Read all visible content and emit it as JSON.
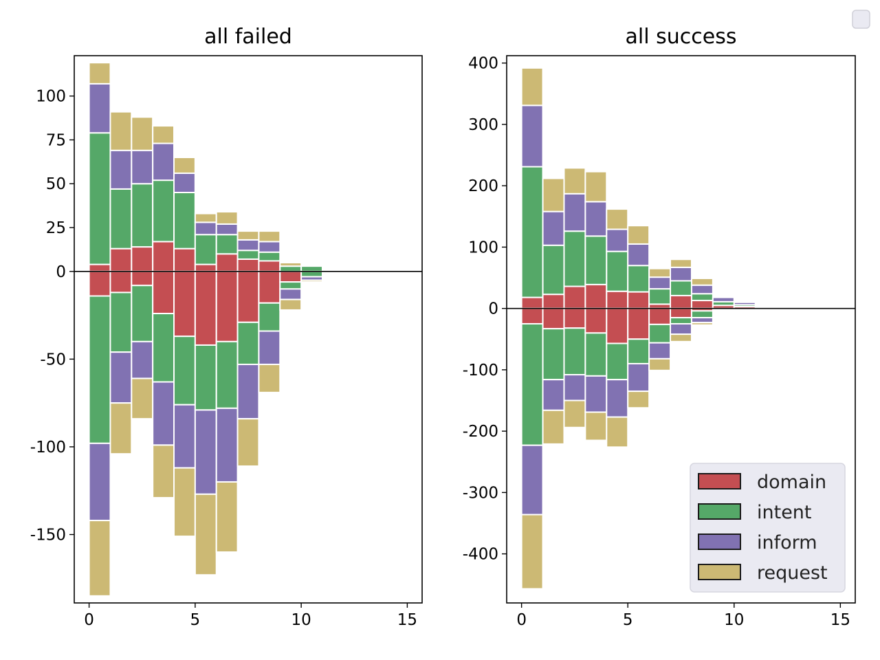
{
  "chart_data": [
    {
      "type": "bar",
      "title": "all failed",
      "stacking": "diverging",
      "bin_width": 1,
      "x": [
        0.5,
        1.5,
        2.5,
        3.5,
        4.5,
        5.5,
        6.5,
        7.5,
        8.5,
        9.5,
        10.5,
        11.5
      ],
      "xlim": [
        -0.7,
        15.7
      ],
      "ylim": [
        -189,
        123
      ],
      "xticks": [
        0,
        5,
        10,
        15
      ],
      "yticks": [
        100,
        75,
        50,
        25,
        0,
        -50,
        -100,
        -150
      ],
      "ytick_labels": [
        "100",
        "75",
        "50",
        "25",
        "0",
        "-50",
        "-100",
        "-150"
      ],
      "series": [
        {
          "name": "domain",
          "positive": [
            4,
            13,
            14,
            17,
            13,
            4,
            10,
            7,
            6,
            0,
            0,
            0
          ],
          "negative": [
            14,
            12,
            8,
            24,
            37,
            42,
            40,
            29,
            18,
            6,
            0,
            0
          ]
        },
        {
          "name": "intent",
          "positive": [
            75,
            34,
            36,
            35,
            32,
            17,
            11,
            5,
            5,
            3,
            3,
            0
          ],
          "negative": [
            84,
            34,
            32,
            39,
            39,
            37,
            38,
            24,
            16,
            4,
            3,
            0
          ]
        },
        {
          "name": "inform",
          "positive": [
            28,
            22,
            19,
            21,
            11,
            7,
            6,
            6,
            6,
            0,
            0,
            0
          ],
          "negative": [
            44,
            29,
            21,
            36,
            36,
            48,
            42,
            31,
            19,
            6,
            2,
            0
          ]
        },
        {
          "name": "request",
          "positive": [
            12,
            22,
            19,
            10,
            9,
            5,
            7,
            5,
            6,
            2,
            0,
            0
          ],
          "negative": [
            43,
            29,
            23,
            30,
            39,
            46,
            40,
            27,
            16,
            6,
            1,
            0
          ]
        }
      ]
    },
    {
      "type": "bar",
      "title": "all success",
      "stacking": "diverging",
      "bin_width": 1,
      "x": [
        0.5,
        1.5,
        2.5,
        3.5,
        4.5,
        5.5,
        6.5,
        7.5,
        8.5,
        9.5,
        10.5,
        11.5
      ],
      "xlim": [
        -0.7,
        15.7
      ],
      "ylim": [
        -480,
        412
      ],
      "xticks": [
        0,
        5,
        10,
        15
      ],
      "yticks": [
        400,
        300,
        200,
        100,
        0,
        -100,
        -200,
        -300,
        -400
      ],
      "ytick_labels": [
        "400",
        "300",
        "200",
        "100",
        "0",
        "-100",
        "-200",
        "-300",
        "-400"
      ],
      "series": [
        {
          "name": "domain",
          "positive": [
            18,
            23,
            36,
            39,
            28,
            27,
            7,
            21,
            13,
            5,
            3,
            0
          ],
          "negative": [
            25,
            33,
            32,
            40,
            57,
            50,
            26,
            15,
            4,
            0,
            0,
            0
          ]
        },
        {
          "name": "intent",
          "positive": [
            213,
            80,
            90,
            79,
            65,
            43,
            25,
            24,
            11,
            6,
            3,
            0
          ],
          "negative": [
            198,
            83,
            76,
            70,
            59,
            40,
            30,
            10,
            11,
            0,
            0,
            0
          ]
        },
        {
          "name": "inform",
          "positive": [
            100,
            55,
            61,
            56,
            36,
            35,
            19,
            22,
            14,
            7,
            4,
            0
          ],
          "negative": [
            113,
            50,
            42,
            59,
            61,
            45,
            26,
            17,
            8,
            0,
            0,
            0
          ]
        },
        {
          "name": "request",
          "positive": [
            61,
            54,
            42,
            49,
            33,
            30,
            14,
            13,
            11,
            0,
            0,
            0
          ],
          "negative": [
            121,
            55,
            44,
            46,
            49,
            27,
            19,
            12,
            4,
            0,
            0,
            0
          ]
        }
      ]
    }
  ],
  "legend": {
    "placement": "lower-right",
    "entries": [
      {
        "name": "domain",
        "color": "#c44e52"
      },
      {
        "name": "intent",
        "color": "#55a868"
      },
      {
        "name": "inform",
        "color": "#8172b2"
      },
      {
        "name": "request",
        "color": "#ccb974"
      }
    ]
  },
  "colors": {
    "domain": "#c44e52",
    "intent": "#55a868",
    "inform": "#8172b2",
    "request": "#ccb974",
    "legend_background": "#eaeaf2"
  }
}
